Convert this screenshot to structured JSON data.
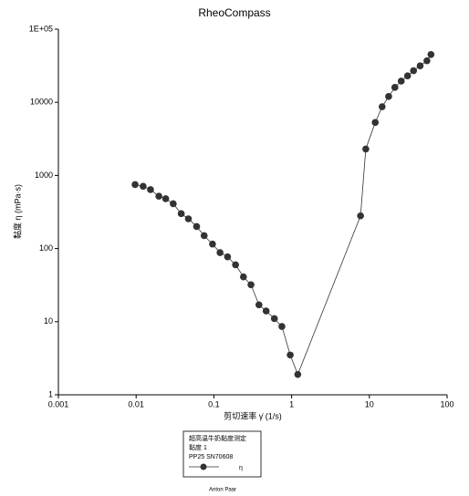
{
  "chart_data": {
    "type": "line",
    "title": "RheoCompass",
    "xlabel": "剪切速率 γ̇ (1/s)",
    "ylabel": "黏度 η (mPa·s)",
    "xscale": "log",
    "yscale": "log",
    "xlim": [
      0.001,
      100
    ],
    "xticks": [
      0.001,
      0.01,
      0.1,
      1,
      10,
      100
    ],
    "ylim": [
      1,
      100000
    ],
    "yticks": [
      1,
      10,
      100,
      1000,
      10000,
      {
        "value": 100000,
        "label": "1E+05"
      }
    ],
    "x": [
      0.0097,
      0.0123,
      0.0153,
      0.0196,
      0.024,
      0.03,
      0.038,
      0.047,
      0.06,
      0.075,
      0.096,
      0.12,
      0.15,
      0.19,
      0.24,
      0.3,
      0.38,
      0.47,
      0.6,
      0.75,
      0.96,
      1.2,
      7.7,
      9.0,
      11.9,
      14.6,
      17.7,
      21.3,
      25.7,
      31,
      37,
      45,
      55,
      62
    ],
    "series": [
      {
        "name": "η",
        "color": "#333333",
        "values": [
          750,
          710,
          640,
          520,
          480,
          410,
          300,
          255,
          200,
          150,
          115,
          88,
          77,
          60,
          41,
          32,
          17,
          14,
          11,
          8.6,
          3.5,
          1.9,
          280,
          2300,
          5300,
          8700,
          12000,
          16000,
          19500,
          23000,
          27000,
          31500,
          37000,
          45000
        ]
      }
    ],
    "legend_lines": [
      "超高温牛奶黏度测定",
      "黏度 1",
      "PP25 SN70608"
    ],
    "footer": "Anton Paar"
  }
}
